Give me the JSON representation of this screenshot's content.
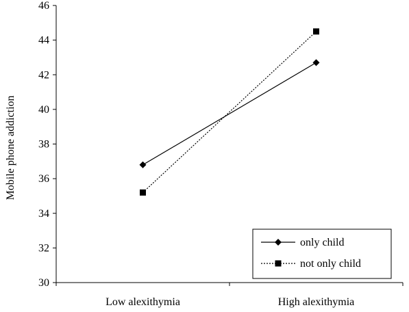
{
  "chart_data": {
    "type": "line",
    "title": "",
    "xlabel": "",
    "ylabel": "Mobile phone addiction",
    "categories": [
      "Low alexithymia",
      "High alexithymia"
    ],
    "ylim": [
      30,
      46
    ],
    "yticks": [
      30,
      32,
      34,
      36,
      38,
      40,
      42,
      44,
      46
    ],
    "grid": false,
    "legend_position": "bottom-right",
    "series": [
      {
        "name": "only child",
        "values": [
          36.8,
          42.7
        ],
        "marker": "diamond",
        "line_style": "solid",
        "color": "#000000"
      },
      {
        "name": "not only child",
        "values": [
          35.2,
          44.5
        ],
        "marker": "square",
        "line_style": "dotted",
        "color": "#000000"
      }
    ]
  }
}
